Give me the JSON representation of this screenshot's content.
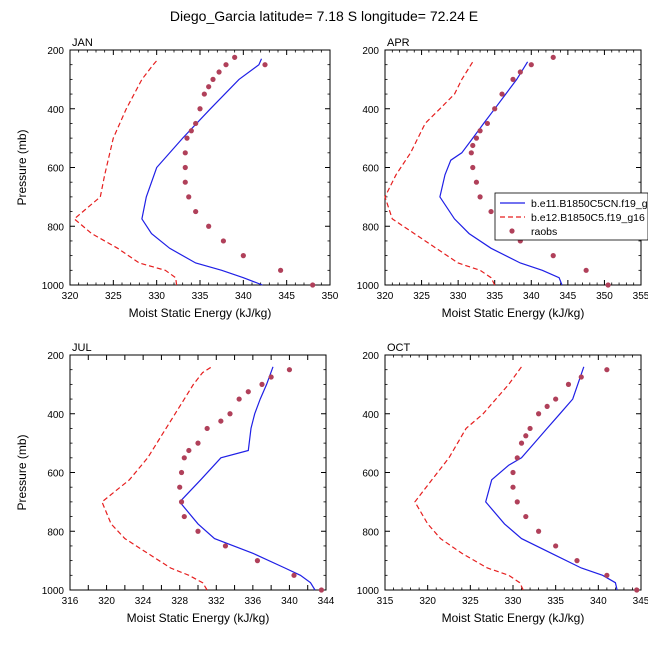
{
  "figure": {
    "title": "Diego_Garcia  latitude= 7.18 S longitude= 72.24 E"
  },
  "legend": {
    "location": "JAN-APR panel, right side",
    "entries": [
      {
        "label": "b.e11.B1850C5CN.f19_g16",
        "style": "solid",
        "color": "#1f1fe6"
      },
      {
        "label": "b.e12.B1850C5.f19_g16",
        "style": "dashed",
        "color": "#e61f1f"
      },
      {
        "label": "raobs",
        "style": "marker",
        "color": "#b0405a"
      }
    ]
  },
  "colors": {
    "model1": "#1f1fe6",
    "model2": "#e61f1f",
    "obs": "#b0405a"
  },
  "chart_data": [
    {
      "type": "line",
      "panel": "JAN",
      "xlabel": "Moist Static Energy (kJ/kg)",
      "ylabel": "Pressure (mb)",
      "xlim": [
        320,
        350
      ],
      "xticks": [
        320,
        325,
        330,
        335,
        340,
        345,
        350
      ],
      "ylim": [
        200,
        1000
      ],
      "yticks": [
        200,
        400,
        600,
        800,
        1000
      ],
      "y_reversed": true,
      "series": [
        {
          "name": "b.e11.B1850C5CN.f19_g16",
          "style": "solid",
          "x": [
            342.2,
            340.0,
            337.5,
            334.5,
            331.5,
            329.4,
            328.3,
            328.8,
            330.0,
            333.0,
            336.2,
            339.5,
            341.8,
            342.1
          ],
          "y": [
            1000,
            975,
            950,
            925,
            875,
            825,
            775,
            700,
            600,
            500,
            400,
            300,
            250,
            230
          ]
        },
        {
          "name": "b.e12.B1850C5.f19_g16",
          "style": "dashed",
          "x": [
            332.3,
            332.2,
            331.0,
            328.0,
            325.5,
            322.5,
            320.5,
            323.5,
            324.0,
            325.0,
            326.5,
            328.3,
            329.6,
            330.2
          ],
          "y": [
            1000,
            975,
            950,
            925,
            875,
            825,
            775,
            700,
            625,
            500,
            400,
            300,
            250,
            230
          ]
        },
        {
          "name": "raobs",
          "style": "marker",
          "x": [
            348.0,
            344.3,
            340.0,
            337.7,
            336.0,
            334.5,
            333.7,
            333.3,
            333.3,
            333.3,
            333.5,
            334.0,
            334.5,
            335.0,
            335.5,
            336.0,
            336.5,
            337.2,
            338.0,
            339.0,
            342.5
          ],
          "y": [
            1000,
            950,
            900,
            850,
            800,
            750,
            700,
            650,
            600,
            550,
            500,
            475,
            450,
            400,
            350,
            325,
            300,
            275,
            250,
            225,
            250
          ]
        }
      ]
    },
    {
      "type": "line",
      "panel": "APR",
      "xlabel": "Moist Static Energy (kJ/kg)",
      "ylabel": "",
      "xlim": [
        320,
        355
      ],
      "xticks": [
        320,
        325,
        330,
        335,
        340,
        345,
        350,
        355
      ],
      "ylim": [
        200,
        1000
      ],
      "yticks": [
        200,
        400,
        600,
        800,
        1000
      ],
      "y_reversed": true,
      "series": [
        {
          "name": "b.e11.B1850C5CN.f19_g16",
          "style": "solid",
          "x": [
            344.2,
            343.8,
            341.5,
            338.5,
            334.5,
            331.5,
            329.5,
            327.5,
            328.2,
            329.0,
            330.5,
            332.0,
            333.5,
            335.0,
            336.5,
            338.0,
            339.5
          ],
          "y": [
            1000,
            975,
            950,
            925,
            875,
            825,
            775,
            700,
            625,
            575,
            550,
            500,
            450,
            400,
            350,
            300,
            240
          ]
        },
        {
          "name": "b.e12.B1850C5.f19_g16",
          "style": "dashed",
          "x": [
            335.0,
            334.5,
            333.0,
            330.0,
            327.0,
            324.0,
            321.0,
            320.0,
            321.5,
            323.5,
            325.5,
            327.5,
            329.5,
            330.5,
            332.0
          ],
          "y": [
            1000,
            975,
            950,
            925,
            875,
            825,
            775,
            700,
            625,
            550,
            450,
            400,
            350,
            300,
            240
          ]
        },
        {
          "name": "raobs",
          "style": "marker",
          "x": [
            350.5,
            347.5,
            343.0,
            338.5,
            336.5,
            334.5,
            333.0,
            332.5,
            332.0,
            331.8,
            332.0,
            332.5,
            333.0,
            334.0,
            335.0,
            336.0,
            337.5,
            338.5,
            340.0,
            343.0
          ],
          "y": [
            1000,
            950,
            900,
            850,
            800,
            750,
            700,
            650,
            600,
            550,
            525,
            500,
            475,
            450,
            400,
            350,
            300,
            275,
            250,
            225
          ]
        }
      ]
    },
    {
      "type": "line",
      "panel": "JUL",
      "xlabel": "Moist Static Energy (kJ/kg)",
      "ylabel": "Pressure (mb)",
      "xlim": [
        316,
        344
      ],
      "xticks": [
        316,
        318,
        320,
        322,
        324,
        326,
        328,
        330,
        332,
        334,
        336,
        338,
        340,
        342,
        344
      ],
      "xticklabels": [
        "316",
        "",
        "320",
        "",
        "324",
        "",
        "328",
        "",
        "332",
        "",
        "336",
        "",
        "340",
        "",
        "344"
      ],
      "ylim": [
        200,
        1000
      ],
      "yticks": [
        200,
        400,
        600,
        800,
        1000
      ],
      "y_reversed": true,
      "series": [
        {
          "name": "b.e11.B1850C5CN.f19_g16",
          "style": "solid",
          "x": [
            342.8,
            342.3,
            341.2,
            339.5,
            336.0,
            331.8,
            330.0,
            328.0,
            330.3,
            332.5,
            335.5,
            335.8,
            336.2,
            336.8,
            337.5,
            338.2
          ],
          "y": [
            1000,
            975,
            950,
            925,
            875,
            825,
            775,
            700,
            625,
            550,
            525,
            450,
            400,
            350,
            300,
            240
          ]
        },
        {
          "name": "b.e12.B1850C5.f19_g16",
          "style": "dashed",
          "x": [
            331.0,
            330.5,
            329.0,
            327.0,
            324.5,
            322.0,
            320.5,
            319.5,
            322.5,
            324.5,
            326.5,
            327.5,
            328.5,
            329.5,
            330.5,
            331.5
          ],
          "y": [
            1000,
            975,
            950,
            925,
            875,
            825,
            775,
            700,
            625,
            550,
            450,
            400,
            350,
            300,
            260,
            240
          ]
        },
        {
          "name": "raobs",
          "style": "marker",
          "x": [
            343.5,
            340.5,
            336.5,
            333.0,
            330.0,
            328.5,
            328.2,
            328.0,
            328.2,
            328.5,
            329.0,
            330.0,
            331.0,
            332.5,
            333.5,
            334.5,
            335.5,
            337.0,
            338.0,
            340.0
          ],
          "y": [
            1000,
            950,
            900,
            850,
            800,
            750,
            700,
            650,
            600,
            550,
            525,
            500,
            450,
            425,
            400,
            350,
            325,
            300,
            275,
            250
          ]
        }
      ]
    },
    {
      "type": "line",
      "panel": "OCT",
      "xlabel": "Moist Static Energy (kJ/kg)",
      "ylabel": "",
      "xlim": [
        315,
        345
      ],
      "xticks": [
        315,
        320,
        325,
        330,
        335,
        340,
        345
      ],
      "ylim": [
        200,
        1000
      ],
      "yticks": [
        200,
        400,
        600,
        800,
        1000
      ],
      "y_reversed": true,
      "series": [
        {
          "name": "b.e11.B1850C5CN.f19_g16",
          "style": "solid",
          "x": [
            342.2,
            342.0,
            340.5,
            338.0,
            334.5,
            331.0,
            329.0,
            326.8,
            327.5,
            329.5,
            331.0,
            332.5,
            334.0,
            335.5,
            337.0,
            338.3
          ],
          "y": [
            1000,
            975,
            950,
            925,
            875,
            825,
            775,
            700,
            625,
            575,
            550,
            500,
            450,
            400,
            350,
            240
          ]
        },
        {
          "name": "b.e12.B1850C5.f19_g16",
          "style": "dashed",
          "x": [
            331.2,
            330.8,
            329.5,
            327.0,
            324.0,
            321.5,
            320.0,
            318.5,
            320.5,
            322.5,
            324.5,
            326.5,
            328.0,
            329.5,
            330.5,
            331.0
          ],
          "y": [
            1000,
            975,
            950,
            925,
            875,
            825,
            775,
            700,
            625,
            550,
            450,
            400,
            350,
            300,
            260,
            240
          ]
        },
        {
          "name": "raobs",
          "style": "marker",
          "x": [
            344.5,
            341.0,
            337.5,
            335.0,
            333.0,
            331.5,
            330.5,
            330.0,
            330.0,
            330.5,
            331.0,
            331.5,
            332.0,
            333.0,
            334.0,
            335.0,
            336.5,
            338.0,
            341.0
          ],
          "y": [
            1000,
            950,
            900,
            850,
            800,
            750,
            700,
            650,
            600,
            550,
            500,
            475,
            450,
            400,
            375,
            350,
            300,
            275,
            250
          ]
        }
      ]
    }
  ]
}
